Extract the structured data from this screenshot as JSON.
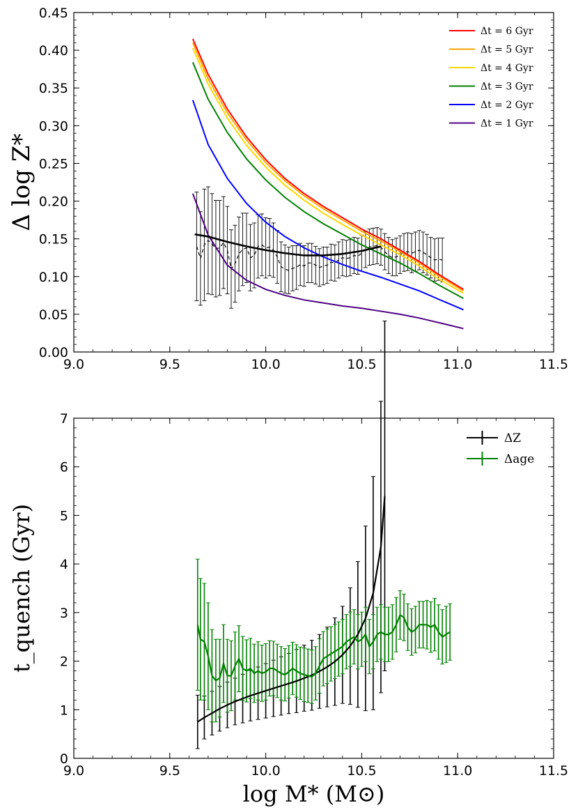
{
  "chart_data": [
    {
      "type": "line",
      "title": "",
      "xlabel": "",
      "ylabel": "Δ log Z*",
      "xlim": [
        9.0,
        11.5
      ],
      "ylim": [
        0.0,
        0.45
      ],
      "xticks": [
        "9.0",
        "9.5",
        "10.0",
        "10.5",
        "11.0",
        "11.5"
      ],
      "yticks": [
        "0.00",
        "0.05",
        "0.10",
        "0.15",
        "0.20",
        "0.25",
        "0.30",
        "0.35",
        "0.40",
        "0.45"
      ],
      "legend_position": "top-right",
      "series": [
        {
          "name": "Δt = 6 Gyr",
          "color": "#ff0000",
          "x": [
            9.62,
            9.7,
            9.8,
            9.9,
            10.0,
            10.1,
            10.2,
            10.3,
            10.4,
            10.5,
            10.6,
            10.7,
            10.8,
            10.9,
            11.03
          ],
          "y": [
            0.415,
            0.368,
            0.322,
            0.285,
            0.255,
            0.23,
            0.21,
            0.193,
            0.178,
            0.163,
            0.15,
            0.135,
            0.12,
            0.103,
            0.083
          ]
        },
        {
          "name": "Δt = 5 Gyr",
          "color": "#ffa500",
          "x": [
            9.62,
            9.7,
            9.8,
            9.9,
            10.0,
            10.1,
            10.2,
            10.3,
            10.4,
            10.5,
            10.6,
            10.7,
            10.8,
            10.9,
            11.03
          ],
          "y": [
            0.41,
            0.362,
            0.317,
            0.281,
            0.251,
            0.227,
            0.207,
            0.19,
            0.175,
            0.16,
            0.147,
            0.133,
            0.118,
            0.101,
            0.081
          ]
        },
        {
          "name": "Δt = 4 Gyr",
          "color": "#ffd700",
          "x": [
            9.62,
            9.7,
            9.8,
            9.9,
            10.0,
            10.1,
            10.2,
            10.3,
            10.4,
            10.5,
            10.6,
            10.7,
            10.8,
            10.9,
            11.03
          ],
          "y": [
            0.403,
            0.355,
            0.31,
            0.274,
            0.245,
            0.221,
            0.201,
            0.184,
            0.169,
            0.155,
            0.142,
            0.129,
            0.114,
            0.097,
            0.078
          ]
        },
        {
          "name": "Δt = 3 Gyr",
          "color": "#008000",
          "x": [
            9.62,
            9.7,
            9.8,
            9.9,
            10.0,
            10.1,
            10.2,
            10.3,
            10.4,
            10.5,
            10.6,
            10.7,
            10.8,
            10.9,
            11.03
          ],
          "y": [
            0.384,
            0.335,
            0.291,
            0.256,
            0.228,
            0.205,
            0.186,
            0.17,
            0.156,
            0.142,
            0.13,
            0.118,
            0.104,
            0.089,
            0.071
          ]
        },
        {
          "name": "Δt = 2 Gyr",
          "color": "#0000ff",
          "x": [
            9.62,
            9.7,
            9.8,
            9.9,
            10.0,
            10.1,
            10.2,
            10.3,
            10.4,
            10.5,
            10.6,
            10.7,
            10.8,
            10.9,
            11.03
          ],
          "y": [
            0.334,
            0.275,
            0.23,
            0.197,
            0.172,
            0.153,
            0.138,
            0.126,
            0.116,
            0.107,
            0.099,
            0.09,
            0.081,
            0.07,
            0.056
          ]
        },
        {
          "name": "Δt = 1 Gyr",
          "color": "#4b0082",
          "x": [
            9.62,
            9.7,
            9.8,
            9.9,
            10.0,
            10.1,
            10.2,
            10.3,
            10.4,
            10.5,
            10.6,
            10.7,
            10.8,
            10.9,
            11.03
          ],
          "y": [
            0.21,
            0.155,
            0.115,
            0.095,
            0.083,
            0.075,
            0.069,
            0.065,
            0.061,
            0.058,
            0.054,
            0.05,
            0.045,
            0.039,
            0.031
          ]
        }
      ],
      "observed_smooth": {
        "color": "#000000",
        "x": [
          9.63,
          9.7,
          9.8,
          9.9,
          10.0,
          10.1,
          10.2,
          10.3,
          10.4,
          10.5,
          10.6
        ],
        "y": [
          0.156,
          0.153,
          0.146,
          0.14,
          0.135,
          0.131,
          0.128,
          0.128,
          0.13,
          0.134,
          0.14
        ]
      },
      "observed_points": {
        "color": "#000000",
        "style": "dashed",
        "x": [
          9.64,
          9.66,
          9.68,
          9.7,
          9.72,
          9.74,
          9.76,
          9.78,
          9.8,
          9.82,
          9.84,
          9.86,
          9.88,
          9.9,
          9.92,
          9.94,
          9.96,
          9.98,
          10.0,
          10.02,
          10.04,
          10.06,
          10.08,
          10.1,
          10.12,
          10.14,
          10.16,
          10.18,
          10.2,
          10.22,
          10.24,
          10.26,
          10.28,
          10.3,
          10.32,
          10.34,
          10.36,
          10.38,
          10.4,
          10.42,
          10.44,
          10.46,
          10.48,
          10.5,
          10.52,
          10.54,
          10.56,
          10.58,
          10.6,
          10.62,
          10.64,
          10.66,
          10.68,
          10.7,
          10.72,
          10.74,
          10.76,
          10.78,
          10.8,
          10.82,
          10.84,
          10.86,
          10.88,
          10.9,
          10.92
        ],
        "y": [
          0.14,
          0.124,
          0.142,
          0.148,
          0.143,
          0.137,
          0.138,
          0.145,
          0.135,
          0.11,
          0.117,
          0.13,
          0.136,
          0.138,
          0.125,
          0.128,
          0.14,
          0.142,
          0.138,
          0.139,
          0.135,
          0.126,
          0.113,
          0.11,
          0.108,
          0.111,
          0.112,
          0.116,
          0.114,
          0.118,
          0.118,
          0.115,
          0.112,
          0.114,
          0.115,
          0.119,
          0.118,
          0.122,
          0.125,
          0.124,
          0.125,
          0.128,
          0.127,
          0.131,
          0.136,
          0.139,
          0.14,
          0.141,
          0.139,
          0.133,
          0.128,
          0.125,
          0.126,
          0.129,
          0.132,
          0.133,
          0.131,
          0.133,
          0.135,
          0.132,
          0.129,
          0.125,
          0.122,
          0.123,
          0.122
        ],
        "yerr": [
          0.072,
          0.062,
          0.074,
          0.071,
          0.067,
          0.064,
          0.063,
          0.061,
          0.058,
          0.052,
          0.051,
          0.049,
          0.048,
          0.046,
          0.044,
          0.043,
          0.042,
          0.041,
          0.04,
          0.038,
          0.036,
          0.035,
          0.033,
          0.032,
          0.031,
          0.03,
          0.029,
          0.028,
          0.027,
          0.026,
          0.026,
          0.025,
          0.025,
          0.025,
          0.024,
          0.024,
          0.024,
          0.024,
          0.024,
          0.024,
          0.024,
          0.024,
          0.024,
          0.024,
          0.024,
          0.024,
          0.024,
          0.024,
          0.024,
          0.024,
          0.024,
          0.024,
          0.025,
          0.025,
          0.025,
          0.025,
          0.026,
          0.026,
          0.026,
          0.027,
          0.027,
          0.027,
          0.028,
          0.028,
          0.029
        ]
      }
    },
    {
      "type": "line",
      "title": "",
      "xlabel": "log M* (M⊙)",
      "ylabel": "t_quench (Gyr)",
      "xlim": [
        9.0,
        11.5
      ],
      "ylim": [
        0,
        7
      ],
      "xticks": [
        "9.0",
        "9.5",
        "10.0",
        "10.5",
        "11.0",
        "11.5"
      ],
      "yticks": [
        "0",
        "1",
        "2",
        "3",
        "4",
        "5",
        "6",
        "7"
      ],
      "legend_position": "top-right",
      "series": [
        {
          "name": "ΔZ",
          "color": "#000000",
          "x": [
            9.645,
            9.68,
            9.72,
            9.76,
            9.8,
            9.84,
            9.88,
            9.92,
            9.96,
            10.0,
            10.04,
            10.08,
            10.12,
            10.16,
            10.2,
            10.24,
            10.28,
            10.32,
            10.36,
            10.4,
            10.44,
            10.48,
            10.52,
            10.56,
            10.6,
            10.62
          ],
          "y": [
            0.75,
            0.84,
            0.93,
            1.02,
            1.1,
            1.17,
            1.23,
            1.29,
            1.34,
            1.39,
            1.44,
            1.49,
            1.54,
            1.59,
            1.65,
            1.71,
            1.79,
            1.88,
            1.99,
            2.13,
            2.31,
            2.55,
            2.88,
            3.4,
            4.35,
            5.4
          ],
          "yerr": [
            0.55,
            0.44,
            0.45,
            0.46,
            0.47,
            0.48,
            0.5,
            0.52,
            0.54,
            0.56,
            0.58,
            0.6,
            0.62,
            0.65,
            0.68,
            0.72,
            0.76,
            0.82,
            0.9,
            1.0,
            1.2,
            1.5,
            1.9,
            2.4,
            3.0,
            3.6
          ]
        },
        {
          "name": "Δage",
          "color": "#008000",
          "x": [
            9.645,
            9.66,
            9.68,
            9.7,
            9.72,
            9.74,
            9.76,
            9.78,
            9.8,
            9.82,
            9.84,
            9.86,
            9.88,
            9.9,
            9.92,
            9.94,
            9.96,
            9.98,
            10.0,
            10.02,
            10.04,
            10.06,
            10.08,
            10.1,
            10.12,
            10.14,
            10.16,
            10.18,
            10.2,
            10.22,
            10.24,
            10.26,
            10.28,
            10.3,
            10.32,
            10.34,
            10.36,
            10.38,
            10.4,
            10.42,
            10.44,
            10.46,
            10.48,
            10.5,
            10.52,
            10.54,
            10.56,
            10.58,
            10.6,
            10.62,
            10.64,
            10.66,
            10.68,
            10.7,
            10.72,
            10.74,
            10.76,
            10.78,
            10.8,
            10.82,
            10.84,
            10.86,
            10.88,
            10.9,
            10.92,
            10.94,
            10.96
          ],
          "y": [
            2.75,
            2.45,
            2.4,
            2.1,
            1.7,
            1.6,
            1.65,
            1.95,
            1.7,
            1.7,
            1.9,
            2.05,
            1.85,
            1.8,
            1.85,
            1.75,
            1.8,
            1.75,
            1.78,
            1.85,
            1.85,
            1.8,
            1.75,
            1.72,
            1.78,
            1.85,
            1.8,
            1.75,
            1.72,
            1.7,
            1.68,
            1.75,
            1.9,
            2.05,
            2.1,
            2.15,
            2.2,
            2.25,
            2.3,
            2.4,
            2.45,
            2.5,
            2.4,
            2.45,
            2.55,
            2.3,
            2.4,
            2.55,
            2.6,
            2.55,
            2.55,
            2.6,
            2.75,
            2.95,
            2.9,
            2.7,
            2.6,
            2.65,
            2.75,
            2.75,
            2.75,
            2.7,
            2.75,
            2.6,
            2.5,
            2.55,
            2.6
          ],
          "yerr": [
            1.35,
            1.25,
            1.2,
            1.1,
            0.95,
            0.85,
            0.8,
            0.8,
            0.75,
            0.72,
            0.7,
            0.68,
            0.66,
            0.64,
            0.62,
            0.6,
            0.6,
            0.58,
            0.58,
            0.57,
            0.56,
            0.55,
            0.55,
            0.54,
            0.54,
            0.54,
            0.54,
            0.54,
            0.55,
            0.55,
            0.55,
            0.55,
            0.56,
            0.56,
            0.56,
            0.56,
            0.56,
            0.56,
            0.56,
            0.56,
            0.56,
            0.56,
            0.56,
            0.56,
            0.56,
            0.56,
            0.56,
            0.56,
            0.56,
            0.56,
            0.56,
            0.56,
            0.56,
            0.5,
            0.48,
            0.48,
            0.48,
            0.48,
            0.48,
            0.48,
            0.5,
            0.52,
            0.54,
            0.56,
            0.56,
            0.58,
            0.58
          ]
        }
      ]
    }
  ]
}
